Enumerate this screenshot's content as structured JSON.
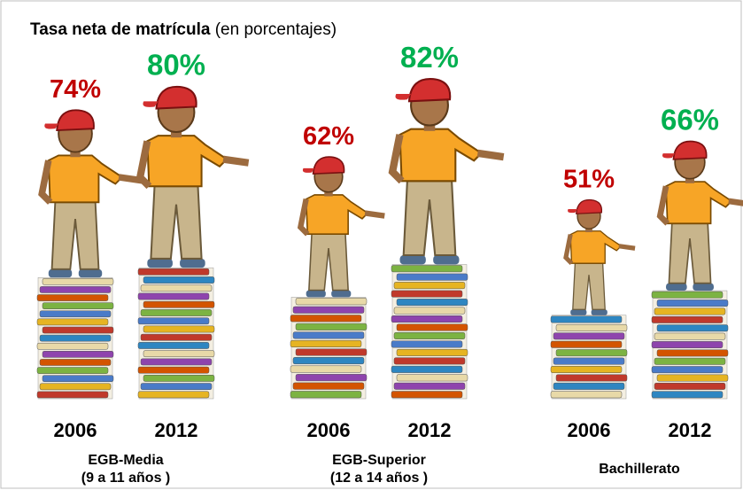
{
  "chart_data": {
    "type": "pictograph",
    "title": "Tasa neta de matrícula",
    "subtitle": "(en porcentajes)",
    "categories": [
      "EGB-Media",
      "EGB-Superior",
      "Bachillerato"
    ],
    "category_sublabels": [
      "(9 a 11 años )",
      "(12 a 14 años )",
      null
    ],
    "series": [
      {
        "name": "2006",
        "color": "#c00000",
        "values": [
          74,
          62,
          51
        ],
        "value_labels": [
          "74%",
          "62%",
          "51%"
        ]
      },
      {
        "name": "2012",
        "color": "#00b050",
        "values": [
          80,
          82,
          66
        ],
        "value_labels": [
          "80%",
          "82%",
          "66%"
        ]
      }
    ]
  }
}
